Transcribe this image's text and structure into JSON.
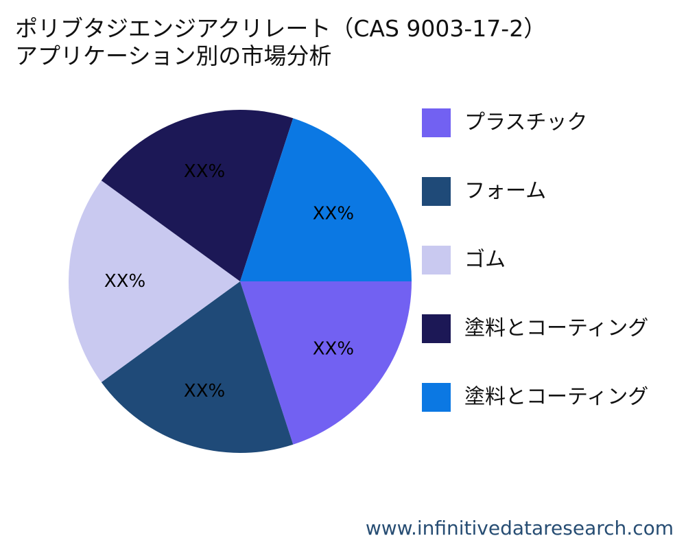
{
  "title": {
    "line1": "ポリブタジエンジアクリレート（CAS 9003-17-2）",
    "line2": "アプリケーション別の市場分析"
  },
  "chart_data": {
    "type": "pie",
    "title": "ポリブタジエンジアクリレート（CAS 9003-17-2） アプリケーション別の市場分析",
    "slices": [
      {
        "label": "プラスチック",
        "value": 20,
        "display": "XX%",
        "color": "#7261f2"
      },
      {
        "label": "フォーム",
        "value": 20,
        "display": "XX%",
        "color": "#1f4a78"
      },
      {
        "label": "ゴム",
        "value": 20,
        "display": "XX%",
        "color": "#c9c9f0"
      },
      {
        "label": "塗料とコーティング",
        "value": 20,
        "display": "XX%",
        "color": "#1c1856"
      },
      {
        "label": "塗料とコーティング",
        "value": 20,
        "display": "XX%",
        "color": "#0b78e3"
      }
    ],
    "start_angle_deg": 0,
    "direction": "clockwise-from-right",
    "legend_position": "right"
  },
  "watermark": "www.infinitivedataresearch.com"
}
